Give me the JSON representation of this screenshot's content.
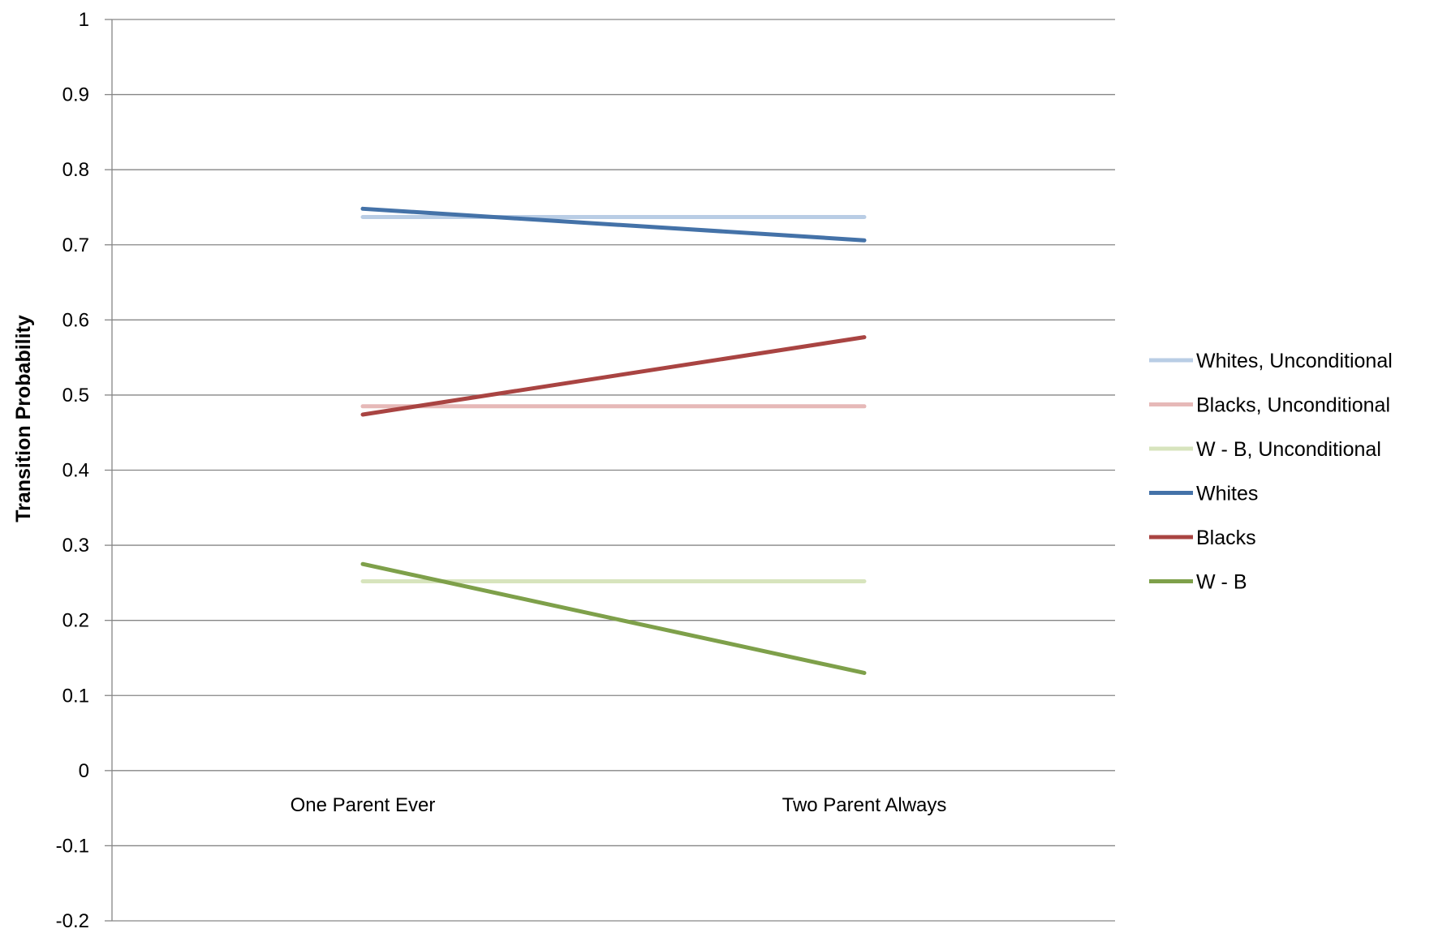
{
  "chart_data": {
    "type": "line",
    "ylabel": "Transition Probability",
    "xlabel": "",
    "categories": [
      "One Parent Ever",
      "Two Parent Always"
    ],
    "ylim": [
      -0.2,
      1
    ],
    "yticks": [
      "1",
      "0.9",
      "0.8",
      "0.7",
      "0.6",
      "0.5",
      "0.4",
      "0.3",
      "0.2",
      "0.1",
      "0",
      "-0.1",
      "-0.2"
    ],
    "ytick_values": [
      1,
      0.9,
      0.8,
      0.7,
      0.6,
      0.5,
      0.4,
      0.3,
      0.2,
      0.1,
      0,
      -0.1,
      -0.2
    ],
    "grid": true,
    "legend_position": "right",
    "series": [
      {
        "name": "Whites, Unconditional",
        "values": [
          0.737,
          0.737
        ],
        "color": "#b9cde5"
      },
      {
        "name": "Blacks, Unconditional",
        "values": [
          0.485,
          0.485
        ],
        "color": "#e6b9b8"
      },
      {
        "name": "W - B, Unconditional",
        "values": [
          0.252,
          0.252
        ],
        "color": "#d7e4bd"
      },
      {
        "name": "Whites",
        "values": [
          0.748,
          0.706
        ],
        "color": "#4472a8"
      },
      {
        "name": "Blacks",
        "values": [
          0.474,
          0.577
        ],
        "color": "#a94442"
      },
      {
        "name": "W - B",
        "values": [
          0.275,
          0.13
        ],
        "color": "#7ea04a"
      }
    ]
  }
}
